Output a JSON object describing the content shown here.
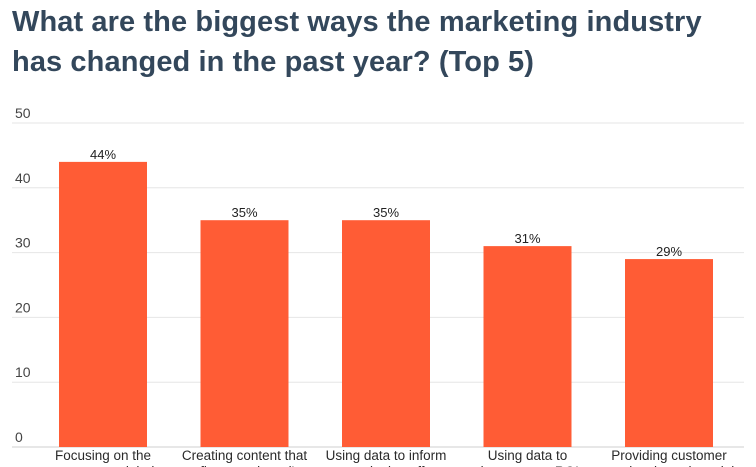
{
  "title_lines": [
    "What are the biggest ways the marketing industry",
    "has changed in the past year? (Top 5)"
  ],
  "chart_data": {
    "type": "bar",
    "title": "What are the biggest ways the marketing industry has changed in the past year? (Top 5)",
    "xlabel": "",
    "ylabel": "",
    "ylim": [
      0,
      50
    ],
    "yticks": [
      0,
      10,
      20,
      30,
      40,
      50
    ],
    "grid": true,
    "legend": "none",
    "bar_color": "#ff5c35",
    "grid_color": "#e6e6e6",
    "categories": [
      [
        "Focusing on the",
        "customer and their"
      ],
      [
        "Creating content that",
        "reflects my brand's"
      ],
      [
        "Using data to inform",
        "my marketing efforts"
      ],
      [
        "Using data to",
        "demonstrate ROI"
      ],
      [
        "Providing customer",
        "service through social"
      ]
    ],
    "values": [
      44,
      35,
      35,
      31,
      29
    ],
    "data_labels": [
      "44%",
      "35%",
      "35%",
      "31%",
      "29%"
    ]
  }
}
